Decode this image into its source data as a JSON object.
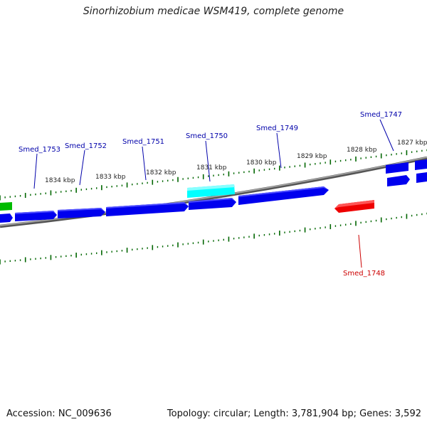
{
  "title": "Sinorhizobium medicae WSM419, complete genome",
  "footer": {
    "accession": "Accession: NC_009636",
    "summary": "Topology: circular; Length: 3,781,904 bp; Genes: 3,592"
  },
  "colors": {
    "forward_gene": "#0000ee",
    "highlight_gene": "#00ffff",
    "reverse_gene": "#ee0000",
    "other_gene": "#00bb00",
    "tick": "#006600",
    "backbone": "#808080",
    "label_blue": "#0000aa",
    "label_red": "#cc0000"
  },
  "kbp_labels": [
    "1834 kbp",
    "1833 kbp",
    "1832 kbp",
    "1831 kbp",
    "1830 kbp",
    "1829 kbp",
    "1828 kbp",
    "1827 kbp"
  ],
  "gene_labels": [
    {
      "name": "Smed_1753",
      "color": "label_blue"
    },
    {
      "name": "Smed_1752",
      "color": "label_blue"
    },
    {
      "name": "Smed_1751",
      "color": "label_blue"
    },
    {
      "name": "Smed_1750",
      "color": "label_blue"
    },
    {
      "name": "Smed_1749",
      "color": "label_blue"
    },
    {
      "name": "Smed_1747",
      "color": "label_blue"
    },
    {
      "name": "Smed_1748",
      "color": "label_red"
    }
  ]
}
